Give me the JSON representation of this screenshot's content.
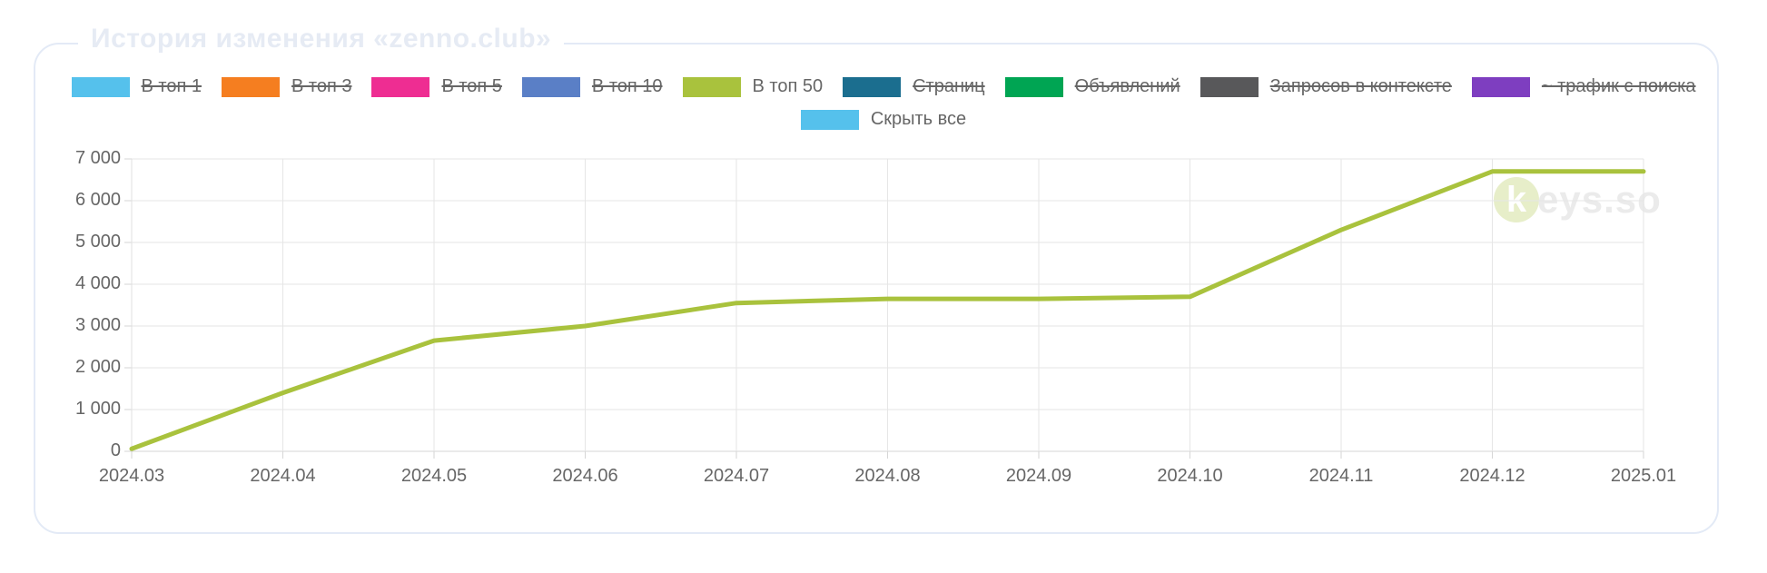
{
  "page": {
    "title": "История изменения «zenno.club»"
  },
  "legend": {
    "items": [
      {
        "label": "В топ 1",
        "color": "#55C1EC",
        "hidden": true
      },
      {
        "label": "В топ 3",
        "color": "#F57E20",
        "hidden": true
      },
      {
        "label": "В топ 5",
        "color": "#EE2D92",
        "hidden": true
      },
      {
        "label": "В топ 10",
        "color": "#5A7FC6",
        "hidden": true
      },
      {
        "label": "В топ 50",
        "color": "#A9C23D",
        "hidden": false
      },
      {
        "label": "Страниц",
        "color": "#1B6E8F",
        "hidden": true
      },
      {
        "label": "Объявлений",
        "color": "#00A553",
        "hidden": true
      },
      {
        "label": "Запросов в контексте",
        "color": "#58585A",
        "hidden": true
      },
      {
        "label": "~ трафик с поиска",
        "color": "#7E3EC0",
        "hidden": true
      }
    ],
    "hide_all": {
      "label": "Скрыть все",
      "color": "#55C1EC"
    }
  },
  "watermark": {
    "k": "k",
    "rest": "eys.so"
  },
  "chart_data": {
    "type": "line",
    "title": "История изменения «zenno.club»",
    "categories": [
      "2024.03",
      "2024.04",
      "2024.05",
      "2024.06",
      "2024.07",
      "2024.08",
      "2024.09",
      "2024.10",
      "2024.11",
      "2024.12",
      "2025.01"
    ],
    "series": [
      {
        "name": "В топ 50",
        "color": "#A9C23D",
        "values": [
          60,
          1400,
          2650,
          3000,
          3550,
          3650,
          3650,
          3700,
          5300,
          6700,
          6700
        ]
      }
    ],
    "hidden_series": [
      "В топ 1",
      "В топ 3",
      "В топ 5",
      "В топ 10",
      "Страниц",
      "Объявлений",
      "Запросов в контексте",
      "~ трафик с поиска"
    ],
    "ylim": [
      0,
      7000
    ],
    "y_tick_values": [
      0,
      1000,
      2000,
      3000,
      4000,
      5000,
      6000,
      7000
    ],
    "y_tick_labels": [
      "0",
      "1 000",
      "2 000",
      "3 000",
      "4 000",
      "5 000",
      "6 000",
      "7 000"
    ],
    "xlabel": "",
    "ylabel": "",
    "grid": true,
    "legend_position": "top"
  }
}
